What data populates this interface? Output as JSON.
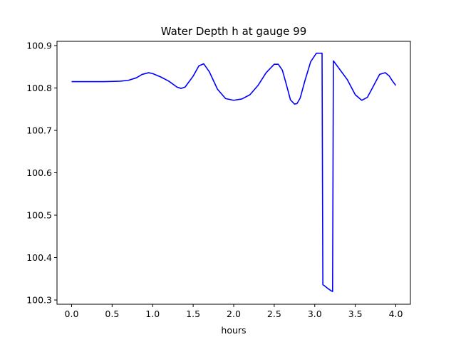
{
  "chart_data": {
    "type": "line",
    "title": "Water Depth h at gauge 99",
    "xlabel": "hours",
    "ylabel": "",
    "xlim": [
      -0.18,
      4.18
    ],
    "ylim": [
      100.29,
      100.91
    ],
    "xticks": [
      0.0,
      0.5,
      1.0,
      1.5,
      2.0,
      2.5,
      3.0,
      3.5,
      4.0
    ],
    "xtick_labels": [
      "0.0",
      "0.5",
      "1.0",
      "1.5",
      "2.0",
      "2.5",
      "3.0",
      "3.5",
      "4.0"
    ],
    "yticks": [
      100.3,
      100.4,
      100.5,
      100.6,
      100.7,
      100.8,
      100.9
    ],
    "ytick_labels": [
      "100.3",
      "100.4",
      "100.5",
      "100.6",
      "100.7",
      "100.8",
      "100.9"
    ],
    "grid": false,
    "series": [
      {
        "color": "#0000ff",
        "x": [
          0.0,
          0.2,
          0.4,
          0.6,
          0.7,
          0.8,
          0.87,
          0.95,
          1.0,
          1.1,
          1.2,
          1.3,
          1.35,
          1.4,
          1.5,
          1.57,
          1.63,
          1.7,
          1.8,
          1.9,
          2.0,
          2.1,
          2.2,
          2.3,
          2.4,
          2.5,
          2.55,
          2.6,
          2.65,
          2.7,
          2.75,
          2.78,
          2.82,
          2.88,
          2.95,
          3.02,
          3.06,
          3.09,
          3.1,
          3.11,
          3.17,
          3.2,
          3.22,
          3.23,
          3.3,
          3.4,
          3.5,
          3.58,
          3.65,
          3.7,
          3.8,
          3.87,
          3.92,
          3.96,
          4.0
        ],
        "y": [
          100.815,
          100.815,
          100.815,
          100.816,
          100.818,
          100.824,
          100.832,
          100.836,
          100.834,
          100.826,
          100.816,
          100.802,
          100.799,
          100.802,
          100.828,
          100.852,
          100.857,
          100.838,
          100.797,
          100.775,
          100.771,
          100.774,
          100.784,
          100.806,
          100.836,
          100.856,
          100.856,
          100.842,
          100.808,
          100.772,
          100.762,
          100.763,
          100.776,
          100.818,
          100.862,
          100.882,
          100.882,
          100.882,
          100.336,
          100.335,
          100.326,
          100.322,
          100.32,
          100.864,
          100.846,
          100.82,
          100.784,
          100.771,
          100.778,
          100.796,
          100.832,
          100.836,
          100.828,
          100.816,
          100.806
        ]
      }
    ]
  }
}
